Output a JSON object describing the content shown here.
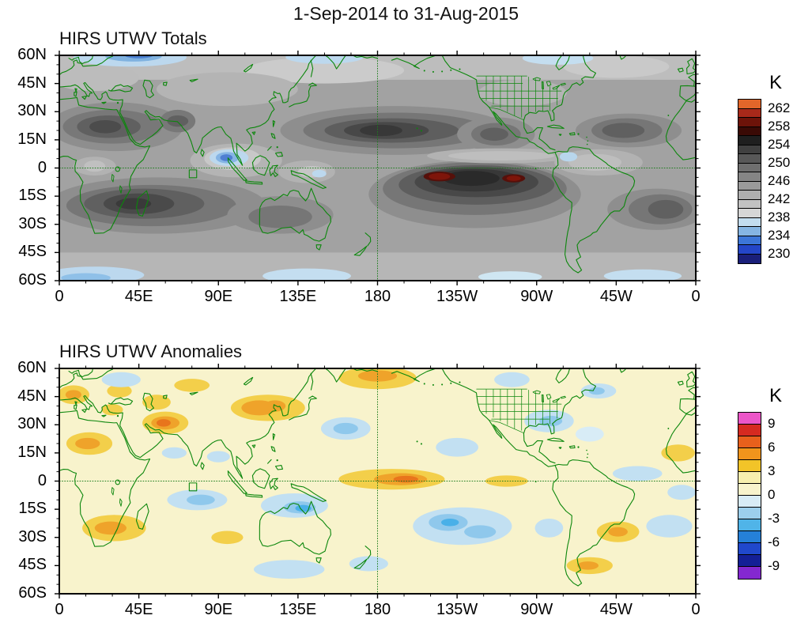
{
  "title": "1-Sep-2014 to 31-Aug-2015",
  "background_color": "#ffffff",
  "coastline_color": "#0c870c",
  "gridline_color": "#1e7d1e",
  "chart_data": [
    {
      "type": "heatmap",
      "title": "HIRS UTWV Totals",
      "projection": "cylindrical equidistant, 0E-360E, 60S-60N",
      "x_ticks": [
        "0",
        "45E",
        "90E",
        "135E",
        "180",
        "135W",
        "90W",
        "45W",
        "0"
      ],
      "y_ticks": [
        "60N",
        "45N",
        "30N",
        "15N",
        "0",
        "15S",
        "30S",
        "45S",
        "60S"
      ],
      "xlim_deg_east": [
        0,
        360
      ],
      "ylim_deg_north": [
        -60,
        60
      ],
      "gridlines": "dashed green line along the equator and along 180 longitude",
      "roi_box_deg": {
        "lon": [
          73.5,
          77.7
        ],
        "lat": [
          -6.2,
          -2
        ]
      },
      "colorbar": {
        "label": "K",
        "tick_labels": [
          "262",
          "258",
          "254",
          "250",
          "246",
          "242",
          "238",
          "234",
          "230"
        ],
        "value_range_K": [
          228,
          264
        ],
        "cell_size_K": 2,
        "cell_colors_top_to_bottom": [
          "#e2662a",
          "#a8291a",
          "#6d1309",
          "#3a0a05",
          "#1f1f1f",
          "#404040",
          "#585858",
          "#6f6f6f",
          "#858585",
          "#9a9a9a",
          "#aeaeae",
          "#c2c2c2",
          "#d6d6d6",
          "#c3ddef",
          "#85b5e3",
          "#3c76d8",
          "#2446c8",
          "#1a1f7a"
        ]
      },
      "features": {
        "dry_high_values": "dark gray shading (~248-254 K) over subtropical bands: south Indian Ocean, southeast Pacific, north Pacific trades, Sahara/Arabia, north and south Atlantic",
        "hot_spots": "dark red cells (>256 K) near 5S 145W and 5S 103W in the southeast Pacific",
        "moist_low_values": "blue shading (<238 K) over Bay of Bengal / Maritime Continent and poleward of ~55 deg in both hemispheres"
      }
    },
    {
      "type": "heatmap",
      "title": "HIRS UTWV Anomalies",
      "projection": "cylindrical equidistant, 0E-360E, 60S-60N",
      "x_ticks": [
        "0",
        "45E",
        "90E",
        "135E",
        "180",
        "135W",
        "90W",
        "45W",
        "0"
      ],
      "y_ticks": [
        "60N",
        "45N",
        "30N",
        "15N",
        "0",
        "15S",
        "30S",
        "45S",
        "60S"
      ],
      "xlim_deg_east": [
        0,
        360
      ],
      "ylim_deg_north": [
        -60,
        60
      ],
      "gridlines": "dashed green line along the equator and along 180 longitude",
      "roi_box_deg": {
        "lon": [
          73.5,
          77.7
        ],
        "lat": [
          -6.2,
          -2
        ]
      },
      "colorbar": {
        "label": "K",
        "tick_labels": [
          "9",
          "6",
          "3",
          "0",
          "-3",
          "-6",
          "-9"
        ],
        "value_range_K": [
          -10.5,
          10.5
        ],
        "cell_size_K": 1.5,
        "cell_colors_top_to_bottom": [
          "#ec56c8",
          "#d62a20",
          "#e8601c",
          "#f0941c",
          "#f2c428",
          "#f7efae",
          "#f8f3cc",
          "#d8ecf6",
          "#9ccfec",
          "#50b4e8",
          "#2580d8",
          "#2048cc",
          "#141f96",
          "#8428d0"
        ]
      },
      "features": {
        "positive_anomalies": "+1.5 to +6 K (yellow/orange) over the Middle East, east Asia, north Pacific near the date line, equatorial central Pacific (~180-150W), northwest Africa, southern Africa and subtropical/southern South America",
        "negative_anomalies": "-1.5 to -6 K (light blue) over the central Indian Ocean, northern Australia / Maritime Continent, subtropical south Pacific, northeast Pacific, southeast US / west Atlantic and south Atlantic"
      }
    }
  ]
}
